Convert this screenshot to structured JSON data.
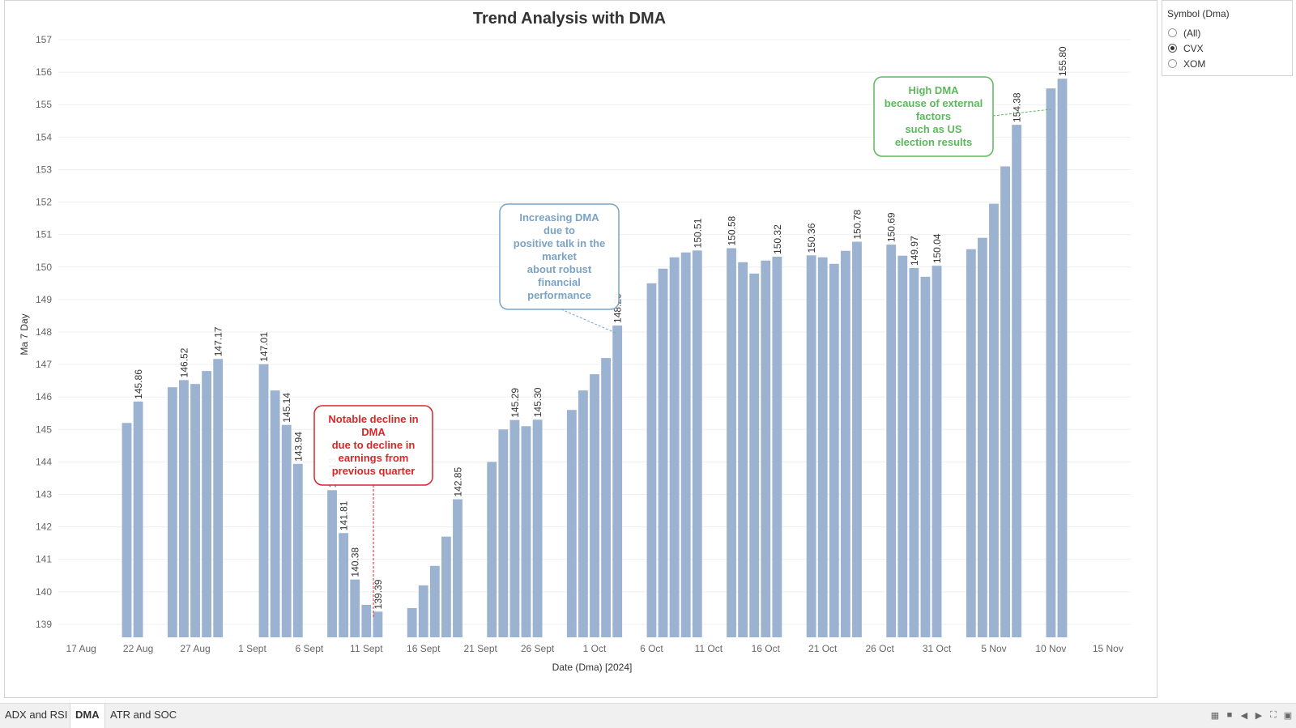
{
  "chart_data": {
    "type": "bar",
    "title": "Trend Analysis with DMA",
    "xlabel": "Date (Dma) [2024]",
    "ylabel": "Ma 7 Day",
    "ylim": [
      138.6,
      157.2
    ],
    "yticks": [
      139,
      140,
      141,
      142,
      143,
      144,
      145,
      146,
      147,
      148,
      149,
      150,
      151,
      152,
      153,
      154,
      155,
      156,
      157
    ],
    "xticks": [
      {
        "label": "17 Aug",
        "date": "2024-08-17"
      },
      {
        "label": "22 Aug",
        "date": "2024-08-22"
      },
      {
        "label": "27 Aug",
        "date": "2024-08-27"
      },
      {
        "label": "1 Sept",
        "date": "2024-09-01"
      },
      {
        "label": "6 Sept",
        "date": "2024-09-06"
      },
      {
        "label": "11 Sept",
        "date": "2024-09-11"
      },
      {
        "label": "16 Sept",
        "date": "2024-09-16"
      },
      {
        "label": "21 Sept",
        "date": "2024-09-21"
      },
      {
        "label": "26 Sept",
        "date": "2024-09-26"
      },
      {
        "label": "1 Oct",
        "date": "2024-10-01"
      },
      {
        "label": "6 Oct",
        "date": "2024-10-06"
      },
      {
        "label": "11 Oct",
        "date": "2024-10-11"
      },
      {
        "label": "16 Oct",
        "date": "2024-10-16"
      },
      {
        "label": "21 Oct",
        "date": "2024-10-21"
      },
      {
        "label": "26 Oct",
        "date": "2024-10-26"
      },
      {
        "label": "31 Oct",
        "date": "2024-10-31"
      },
      {
        "label": "5 Nov",
        "date": "2024-11-05"
      },
      {
        "label": "10 Nov",
        "date": "2024-11-10"
      },
      {
        "label": "15 Nov",
        "date": "2024-11-15"
      }
    ],
    "x_range": [
      "2024-08-15",
      "2024-11-17"
    ],
    "bar_color": "#9bb3d0",
    "grid": true,
    "points": [
      {
        "date": "2024-08-21",
        "value": 145.2
      },
      {
        "date": "2024-08-22",
        "value": 145.86,
        "label": "145.86"
      },
      {
        "date": "2024-08-25",
        "value": 146.3
      },
      {
        "date": "2024-08-26",
        "value": 146.52,
        "label": "146.52"
      },
      {
        "date": "2024-08-27",
        "value": 146.4
      },
      {
        "date": "2024-08-28",
        "value": 146.8
      },
      {
        "date": "2024-08-29",
        "value": 147.17,
        "label": "147.17"
      },
      {
        "date": "2024-09-02",
        "value": 147.01,
        "label": "147.01"
      },
      {
        "date": "2024-09-03",
        "value": 146.2
      },
      {
        "date": "2024-09-04",
        "value": 145.14,
        "label": "145.14"
      },
      {
        "date": "2024-09-05",
        "value": 143.94,
        "label": "143.94"
      },
      {
        "date": "2024-09-08",
        "value": 143.13,
        "label": "143.13"
      },
      {
        "date": "2024-09-09",
        "value": 141.81,
        "label": "141.81"
      },
      {
        "date": "2024-09-10",
        "value": 140.38,
        "label": "140.38"
      },
      {
        "date": "2024-09-11",
        "value": 139.6
      },
      {
        "date": "2024-09-12",
        "value": 139.39,
        "label": "139.39"
      },
      {
        "date": "2024-09-15",
        "value": 139.5
      },
      {
        "date": "2024-09-16",
        "value": 140.2
      },
      {
        "date": "2024-09-17",
        "value": 140.8
      },
      {
        "date": "2024-09-18",
        "value": 141.7
      },
      {
        "date": "2024-09-19",
        "value": 142.85,
        "label": "142.85"
      },
      {
        "date": "2024-09-22",
        "value": 144.0
      },
      {
        "date": "2024-09-23",
        "value": 145.0
      },
      {
        "date": "2024-09-24",
        "value": 145.29,
        "label": "145.29"
      },
      {
        "date": "2024-09-25",
        "value": 145.1
      },
      {
        "date": "2024-09-26",
        "value": 145.3,
        "label": "145.30"
      },
      {
        "date": "2024-09-29",
        "value": 145.6
      },
      {
        "date": "2024-09-30",
        "value": 146.2
      },
      {
        "date": "2024-10-01",
        "value": 146.7
      },
      {
        "date": "2024-10-02",
        "value": 147.2
      },
      {
        "date": "2024-10-03",
        "value": 148.2,
        "label": "148.20"
      },
      {
        "date": "2024-10-06",
        "value": 149.5
      },
      {
        "date": "2024-10-07",
        "value": 149.95
      },
      {
        "date": "2024-10-08",
        "value": 150.3
      },
      {
        "date": "2024-10-09",
        "value": 150.45
      },
      {
        "date": "2024-10-10",
        "value": 150.51,
        "label": "150.51"
      },
      {
        "date": "2024-10-13",
        "value": 150.58,
        "label": "150.58"
      },
      {
        "date": "2024-10-14",
        "value": 150.15
      },
      {
        "date": "2024-10-15",
        "value": 149.8
      },
      {
        "date": "2024-10-16",
        "value": 150.2
      },
      {
        "date": "2024-10-17",
        "value": 150.32,
        "label": "150.32"
      },
      {
        "date": "2024-10-20",
        "value": 150.36,
        "label": "150.36"
      },
      {
        "date": "2024-10-21",
        "value": 150.3
      },
      {
        "date": "2024-10-22",
        "value": 150.1
      },
      {
        "date": "2024-10-23",
        "value": 150.5
      },
      {
        "date": "2024-10-24",
        "value": 150.78,
        "label": "150.78"
      },
      {
        "date": "2024-10-27",
        "value": 150.69,
        "label": "150.69"
      },
      {
        "date": "2024-10-28",
        "value": 150.35
      },
      {
        "date": "2024-10-29",
        "value": 149.97,
        "label": "149.97"
      },
      {
        "date": "2024-10-30",
        "value": 149.7
      },
      {
        "date": "2024-10-31",
        "value": 150.04,
        "label": "150.04"
      },
      {
        "date": "2024-11-03",
        "value": 150.55
      },
      {
        "date": "2024-11-04",
        "value": 150.9
      },
      {
        "date": "2024-11-05",
        "value": 151.95
      },
      {
        "date": "2024-11-06",
        "value": 153.1
      },
      {
        "date": "2024-11-07",
        "value": 154.38,
        "label": "154.38"
      },
      {
        "date": "2024-11-10",
        "value": 155.5
      },
      {
        "date": "2024-11-11",
        "value": 155.8,
        "label": "155.80"
      }
    ],
    "annotations": [
      {
        "id": "red",
        "text": [
          "Notable decline in",
          "DMA",
          "due to decline in",
          "earnings from",
          "previous quarter"
        ],
        "color": "#d9262a",
        "target_date": "2024-09-12"
      },
      {
        "id": "blue",
        "text": [
          "Increasing DMA",
          "due to",
          "positive talk in the",
          "market",
          "about robust",
          "financial",
          "performance"
        ],
        "color": "#7aa3c6",
        "target_date": "2024-10-03"
      },
      {
        "id": "green",
        "text": [
          "High DMA",
          "because of external",
          "factors",
          "such as US",
          "election results"
        ],
        "color": "#5cb85c",
        "target_date": "2024-11-10"
      }
    ]
  },
  "legend": {
    "title": "Symbol (Dma)",
    "options": [
      {
        "label": "(All)",
        "selected": false
      },
      {
        "label": "CVX",
        "selected": true
      },
      {
        "label": "XOM",
        "selected": false
      }
    ]
  },
  "tabs": [
    {
      "label": "ADX and RSI",
      "active": false
    },
    {
      "label": "DMA",
      "active": true
    },
    {
      "label": "ATR and SOC",
      "active": false
    }
  ]
}
